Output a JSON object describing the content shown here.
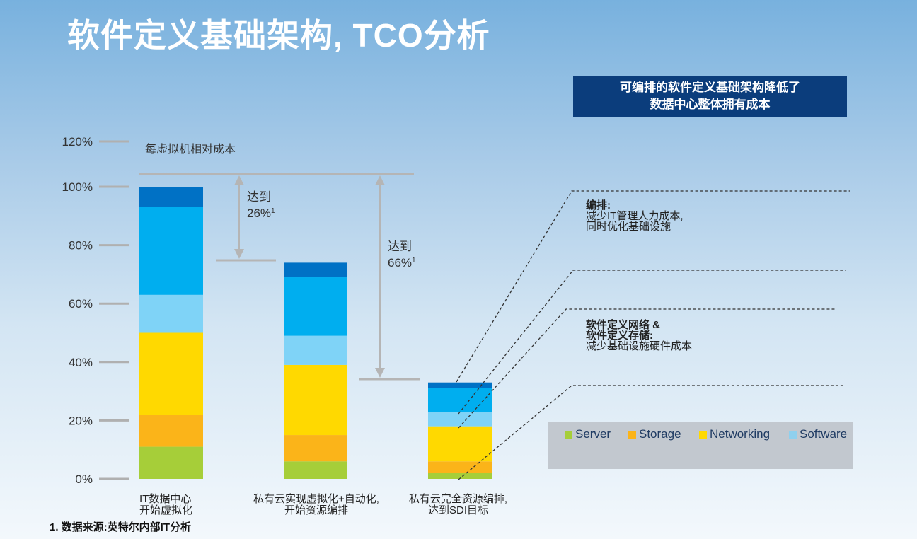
{
  "title": "软件定义基础架构, TCO分析",
  "callout": {
    "line1": "可编排的软件定义基础架构降低了",
    "line2": "数据中心整体拥有成本"
  },
  "notes": [
    {
      "heading": "编排:",
      "lines": [
        "减少IT管理人力成本,",
        "同时优化基础设施"
      ]
    },
    {
      "heading": "软件定义网络 &",
      "heading2": "软件定义存储:",
      "lines": [
        "减少基础设施硬件成本"
      ]
    }
  ],
  "footnote": "1. 数据来源:英特尔内部IT分析",
  "chart_data": {
    "type": "bar",
    "stacked": true,
    "title": "每虚拟机相对成本",
    "categories": [
      [
        "IT数据中心",
        "开始虚拟化"
      ],
      [
        "私有云实现虚拟化+自动化,",
        "开始资源编排"
      ],
      [
        "私有云完全资源编排,",
        "达到SDI目标"
      ]
    ],
    "yticks": [
      "0%",
      "20%",
      "40%",
      "60%",
      "80%",
      "100%",
      "120%"
    ],
    "ylim": [
      0,
      120
    ],
    "series": [
      {
        "name": "Server",
        "color": "#a6ce39",
        "values": [
          11,
          6,
          2
        ]
      },
      {
        "name": "Storage",
        "color": "#fbb419",
        "values": [
          11,
          9,
          4
        ]
      },
      {
        "name": "Networking",
        "color": "#ffd900",
        "values": [
          28,
          24,
          12
        ]
      },
      {
        "name": "Software",
        "color": "#7fd3f7",
        "values": [
          13,
          10,
          5
        ]
      },
      {
        "color": "#00aeef",
        "values": [
          30,
          20,
          8
        ]
      },
      {
        "color": "#0071c5",
        "values": [
          7,
          5,
          2
        ]
      }
    ],
    "annotations": [
      {
        "line1": "达到",
        "line2": "26%",
        "sup": "1"
      },
      {
        "line1": "达到",
        "line2": "66%",
        "sup": "1"
      }
    ]
  }
}
